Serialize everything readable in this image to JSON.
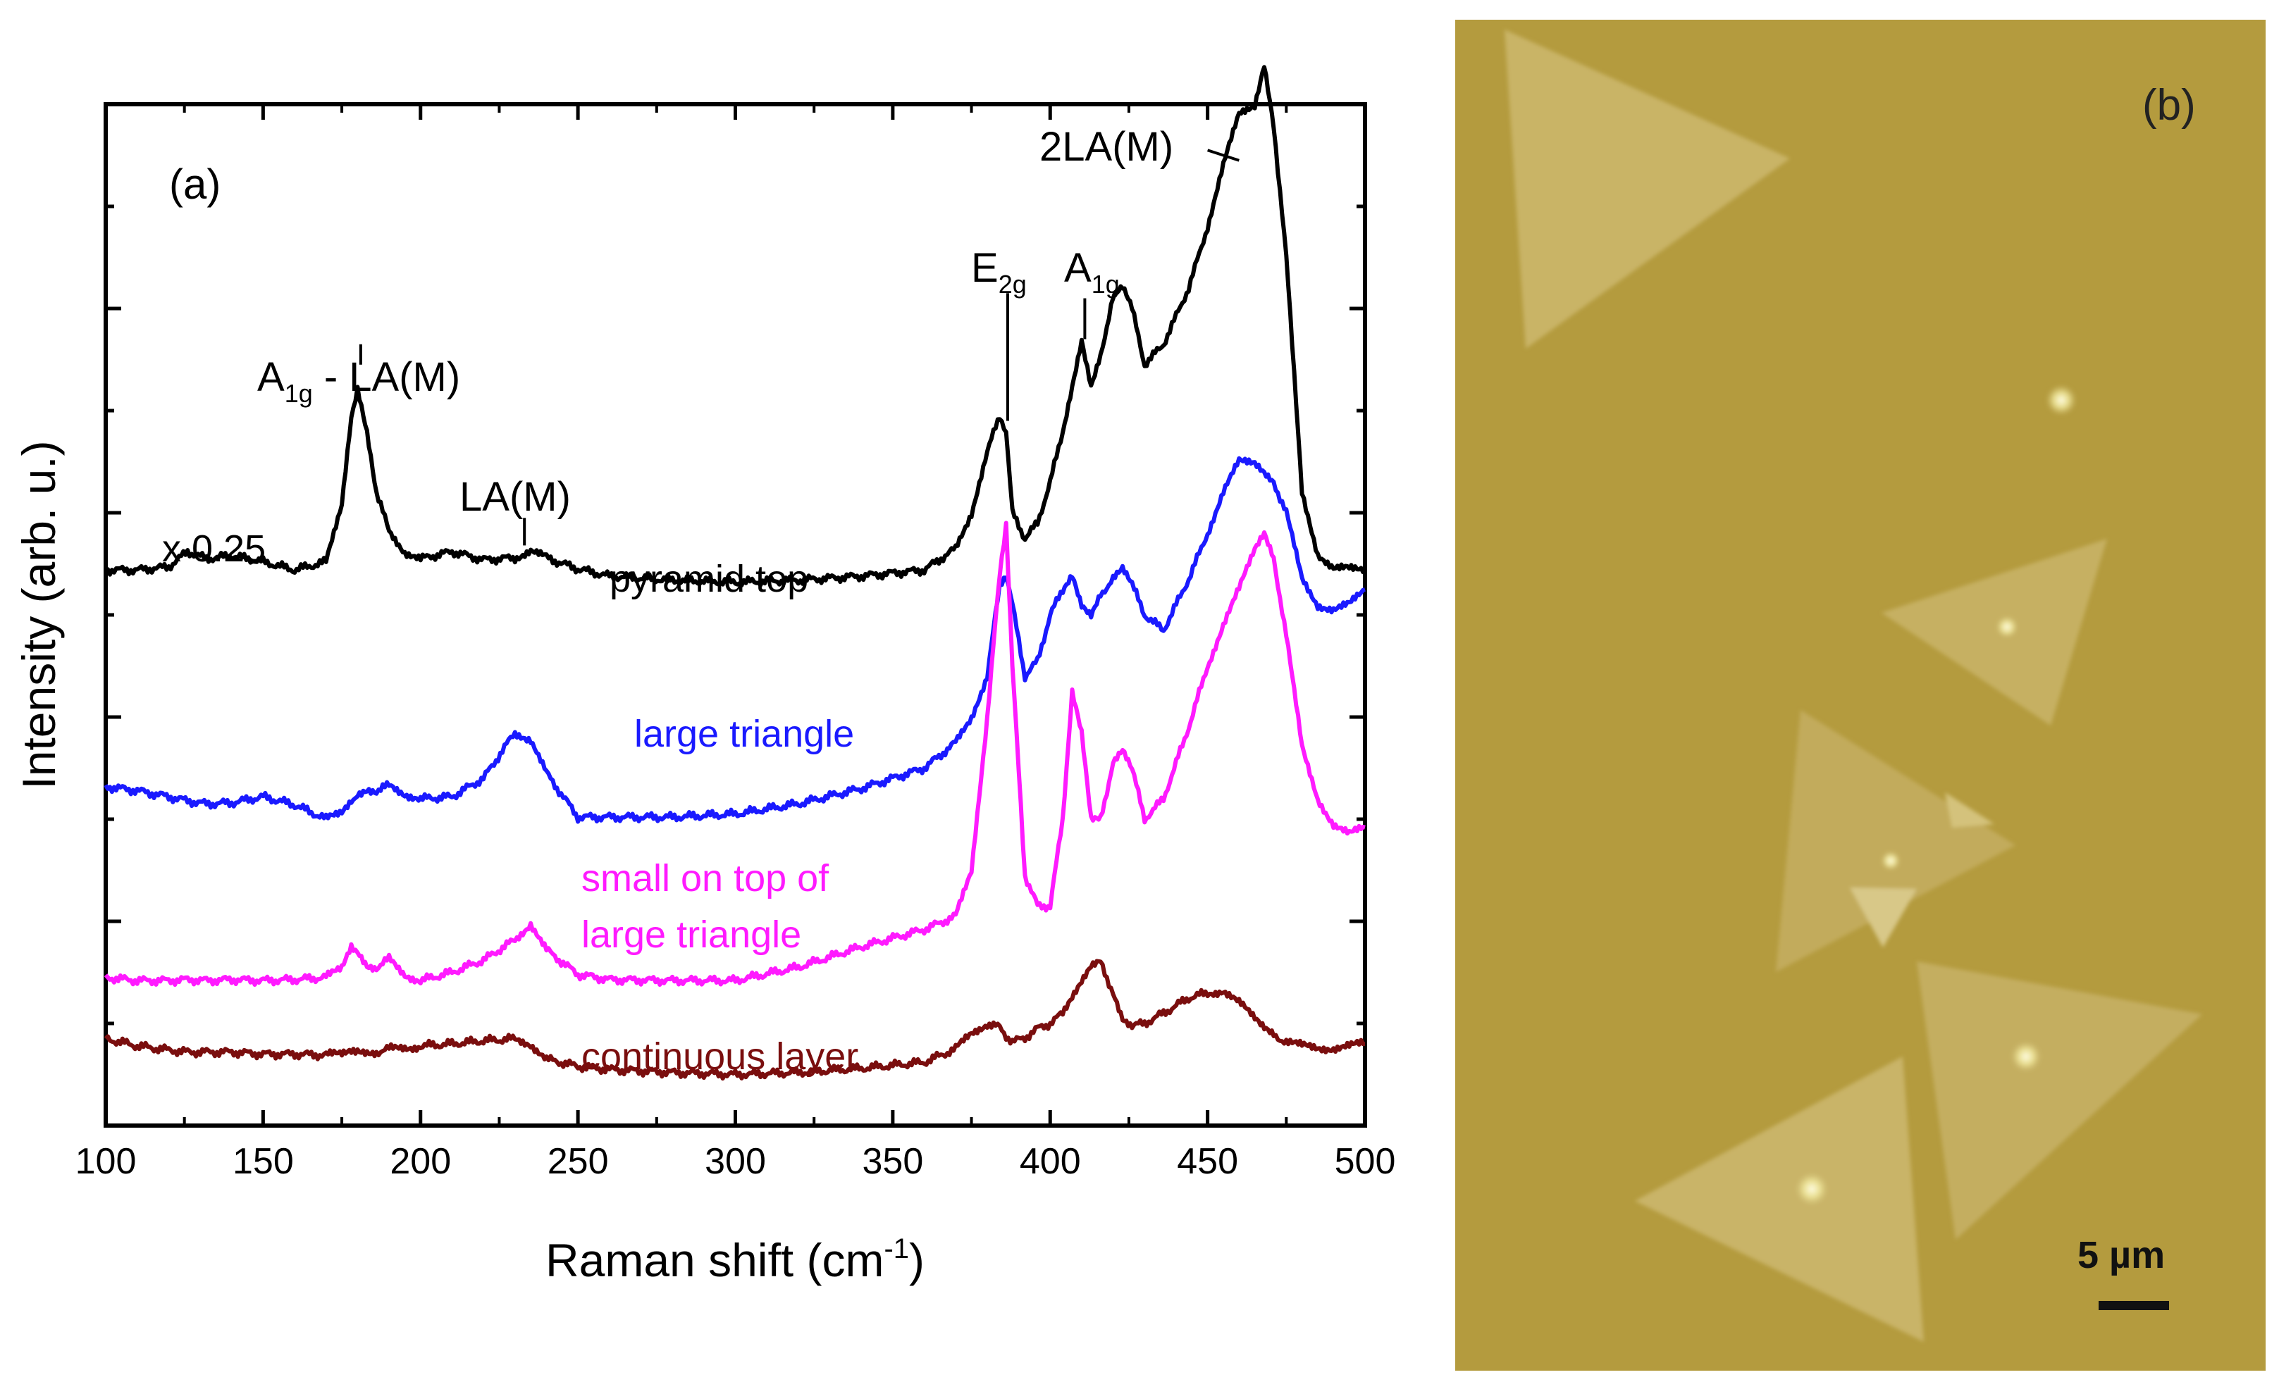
{
  "panel_a": {
    "label": "(a)",
    "scale_note": "x 0.25",
    "peaks": {
      "a1g_la_main": "A",
      "a1g_la_sub": "1g",
      "a1g_la_rest": " - LA(M)",
      "la": "LA(M)",
      "e2g_main": "E",
      "e2g_sub": "2g",
      "a1g_main": "A",
      "a1g_sub": "1g",
      "two_la": "2LA(M)"
    },
    "xlabel_main": "Raman shift (cm",
    "xlabel_sup": "-1",
    "xlabel_close": ")"
  },
  "panel_b": {
    "label": "(b)",
    "scale_bar": "5 µm",
    "colors": {
      "background": "#b49b3e",
      "flake": "#c8b262",
      "flake_light": "#d6c47e",
      "spot": "#fbf7cf",
      "scale_bar": "#111111"
    }
  },
  "chart_data": {
    "type": "line",
    "title": "",
    "xlabel": "Raman shift (cm-1)",
    "ylabel": "Intensity (arb. u.)",
    "xlim": [
      100,
      500
    ],
    "ylim": [
      0,
      10
    ],
    "grid": false,
    "y_tick_labels": false,
    "xticks": [
      100,
      150,
      200,
      250,
      300,
      350,
      400,
      450,
      500
    ],
    "x": [
      100,
      110,
      120,
      126,
      132,
      140,
      150,
      160,
      170,
      175,
      178,
      180,
      183,
      186,
      190,
      195,
      200,
      210,
      220,
      230,
      235,
      240,
      250,
      260,
      280,
      300,
      320,
      340,
      360,
      370,
      375,
      380,
      384,
      386,
      388,
      392,
      396,
      400,
      404,
      407,
      410,
      413,
      416,
      420,
      423,
      426,
      430,
      436,
      444,
      450,
      455,
      460,
      465,
      468,
      471,
      475,
      480,
      485,
      490,
      495,
      500
    ],
    "series": [
      {
        "name": "pyramid top",
        "color": "#000000",
        "values": [
          5.44,
          5.44,
          5.47,
          5.62,
          5.55,
          5.58,
          5.52,
          5.44,
          5.52,
          6.1,
          6.95,
          7.22,
          6.8,
          6.2,
          5.82,
          5.62,
          5.55,
          5.62,
          5.54,
          5.56,
          5.63,
          5.56,
          5.45,
          5.38,
          5.34,
          5.32,
          5.34,
          5.38,
          5.44,
          5.65,
          6.0,
          6.6,
          6.95,
          6.8,
          6.0,
          5.75,
          5.9,
          6.3,
          6.8,
          7.25,
          7.7,
          7.25,
          7.55,
          8.1,
          8.2,
          8.0,
          7.45,
          7.65,
          8.2,
          8.8,
          9.4,
          9.9,
          10.0,
          10.4,
          9.8,
          8.5,
          6.2,
          5.6,
          5.45,
          5.45,
          5.45
        ]
      },
      {
        "name": "large triangle",
        "color": "#1a1aff",
        "values": [
          3.32,
          3.28,
          3.22,
          3.18,
          3.15,
          3.16,
          3.22,
          3.14,
          3.0,
          3.08,
          3.18,
          3.25,
          3.3,
          3.28,
          3.33,
          3.25,
          3.2,
          3.22,
          3.4,
          3.85,
          3.78,
          3.45,
          3.02,
          3.02,
          3.02,
          3.05,
          3.15,
          3.3,
          3.5,
          3.75,
          4.0,
          4.4,
          5.3,
          5.4,
          5.1,
          4.4,
          4.55,
          5.0,
          5.25,
          5.4,
          5.1,
          5.0,
          5.2,
          5.35,
          5.45,
          5.3,
          5.0,
          4.85,
          5.35,
          5.8,
          6.2,
          6.5,
          6.5,
          6.4,
          6.3,
          6.0,
          5.35,
          5.1,
          5.05,
          5.1,
          5.25
        ]
      },
      {
        "name": "small on top of large triangle",
        "color": "#ff1aff",
        "values": [
          1.45,
          1.42,
          1.42,
          1.43,
          1.42,
          1.43,
          1.42,
          1.43,
          1.45,
          1.55,
          1.75,
          1.72,
          1.58,
          1.55,
          1.63,
          1.48,
          1.42,
          1.5,
          1.62,
          1.82,
          1.98,
          1.72,
          1.48,
          1.43,
          1.42,
          1.42,
          1.55,
          1.75,
          1.92,
          2.05,
          2.5,
          4.0,
          5.4,
          5.9,
          4.5,
          2.45,
          2.15,
          2.15,
          3.0,
          4.25,
          3.85,
          3.0,
          3.0,
          3.55,
          3.68,
          3.5,
          3.0,
          3.2,
          3.9,
          4.5,
          4.9,
          5.25,
          5.65,
          5.8,
          5.55,
          4.8,
          3.7,
          3.2,
          2.95,
          2.85,
          2.92
        ]
      },
      {
        "name": "continuous layer",
        "color": "#7a0e0e",
        "values": [
          0.85,
          0.78,
          0.74,
          0.72,
          0.72,
          0.72,
          0.7,
          0.7,
          0.69,
          0.7,
          0.72,
          0.75,
          0.73,
          0.72,
          0.75,
          0.76,
          0.78,
          0.8,
          0.83,
          0.85,
          0.8,
          0.65,
          0.58,
          0.55,
          0.52,
          0.5,
          0.52,
          0.56,
          0.62,
          0.75,
          0.9,
          1.0,
          0.96,
          0.88,
          0.82,
          0.86,
          0.95,
          1.0,
          1.1,
          1.25,
          1.4,
          1.55,
          1.6,
          1.3,
          1.05,
          0.98,
          1.0,
          1.1,
          1.25,
          1.3,
          1.32,
          1.2,
          1.05,
          0.95,
          0.88,
          0.82,
          0.78,
          0.76,
          0.76,
          0.78,
          0.8
        ]
      }
    ],
    "annotations": [
      "pyramid top",
      "large triangle",
      "small on top of",
      "large triangle",
      "continuous layer"
    ]
  }
}
